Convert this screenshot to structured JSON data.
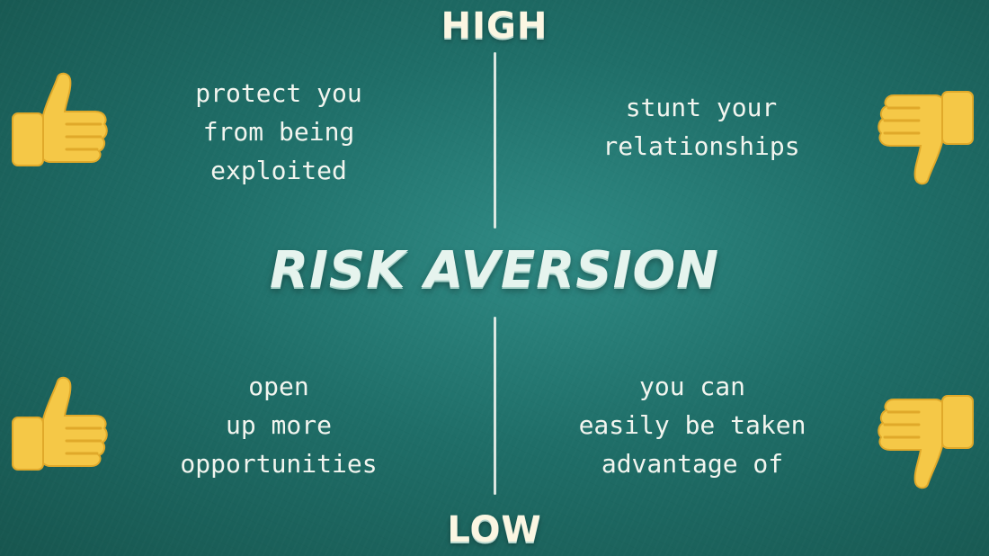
{
  "axis": {
    "high": "HIGH",
    "low": "LOW"
  },
  "title": "RISK AVERSION",
  "quadrants": {
    "top_left": "protect you\nfrom being\nexploited",
    "top_right": "stunt your\nrelationships",
    "bottom_left": "open\nup more\nopportunities",
    "bottom_right": "you can\neasily be taken\nadvantage of"
  },
  "icons": {
    "top_left": "thumbs-up-icon",
    "bottom_left": "thumbs-up-icon",
    "top_right": "thumbs-down-icon",
    "bottom_right": "thumbs-down-icon"
  },
  "colors": {
    "background": "#1f6e68",
    "chalk": "#f2f5ef",
    "hand": "#f5c847",
    "hand_shadow": "#e0a92a"
  }
}
